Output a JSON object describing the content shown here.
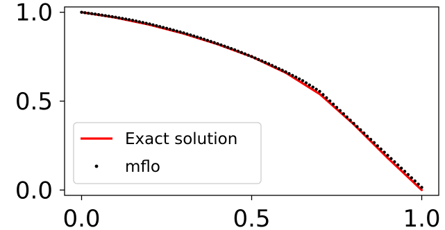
{
  "chart_data": {
    "type": "line",
    "title": "",
    "xlabel": "",
    "ylabel": "",
    "xlim": [
      -0.05,
      1.05
    ],
    "ylim": [
      -0.03,
      1.03
    ],
    "xticks": [
      0.0,
      0.5,
      1.0
    ],
    "xtick_labels": [
      "0.0",
      "0.5",
      "1.0"
    ],
    "yticks": [
      0.0,
      0.5,
      1.0
    ],
    "ytick_labels": [
      "0.0",
      "0.5",
      "1.0"
    ],
    "grid": false,
    "legend_position": "lower-left",
    "series": [
      {
        "name": "Exact solution",
        "style": "line",
        "color": "#ff0000",
        "x": [
          0.0,
          0.1,
          0.2,
          0.3,
          0.4,
          0.5,
          0.6,
          0.7,
          0.8,
          0.9,
          1.0
        ],
        "y": [
          1.0,
          0.97,
          0.93,
          0.88,
          0.82,
          0.75,
          0.66,
          0.54,
          0.37,
          0.18,
          0.0
        ]
      },
      {
        "name": "mflo",
        "style": "markers",
        "color": "#000000",
        "x": [
          0.0,
          0.05,
          0.1,
          0.15,
          0.2,
          0.25,
          0.3,
          0.35,
          0.4,
          0.45,
          0.5,
          0.55,
          0.6,
          0.65,
          0.7,
          0.75,
          0.8,
          0.85,
          0.9,
          0.95,
          1.0
        ],
        "y": [
          1.0,
          0.987,
          0.972,
          0.955,
          0.934,
          0.91,
          0.884,
          0.855,
          0.823,
          0.789,
          0.751,
          0.71,
          0.665,
          0.615,
          0.555,
          0.465,
          0.375,
          0.285,
          0.195,
          0.105,
          0.015
        ]
      }
    ]
  }
}
